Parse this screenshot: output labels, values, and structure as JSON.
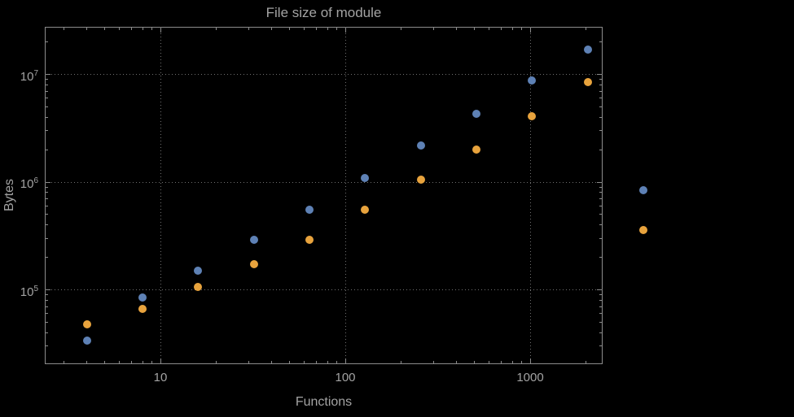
{
  "chart_data": {
    "type": "scatter",
    "title": "File size of module",
    "xlabel": "Functions",
    "ylabel": "Bytes",
    "x_scale": "log",
    "y_scale": "log",
    "x_range": [
      2.4,
      2470
    ],
    "y_range": [
      20500,
      27600000
    ],
    "grid": "dotted-major",
    "legend": "none",
    "x_ticks": [
      {
        "value": 10,
        "label": "10"
      },
      {
        "value": 100,
        "label": "100"
      },
      {
        "value": 1000,
        "label": "1000"
      }
    ],
    "y_ticks": [
      {
        "value": 100000,
        "label": "10^5"
      },
      {
        "value": 1000000,
        "label": "10^6"
      },
      {
        "value": 10000000,
        "label": "10^7"
      }
    ],
    "series": [
      {
        "name": "series-blue",
        "color": "#5e81b5",
        "points": [
          [
            4,
            34000
          ],
          [
            8,
            85000
          ],
          [
            16,
            150000
          ],
          [
            32,
            290000
          ],
          [
            64,
            550000
          ],
          [
            128,
            1100000
          ],
          [
            256,
            2200000
          ],
          [
            512,
            4300000
          ],
          [
            1024,
            8800000
          ],
          [
            2048,
            17000000
          ],
          [
            4096,
            840000
          ]
        ]
      },
      {
        "name": "series-orange",
        "color": "#e8a33d",
        "points": [
          [
            4,
            48000
          ],
          [
            8,
            67000
          ],
          [
            16,
            106000
          ],
          [
            32,
            173000
          ],
          [
            64,
            290000
          ],
          [
            128,
            550000
          ],
          [
            256,
            1050000
          ],
          [
            512,
            2000000
          ],
          [
            1024,
            4100000
          ],
          [
            2048,
            8500000
          ],
          [
            4096,
            360000
          ]
        ]
      }
    ],
    "colors": {
      "background": "#000000",
      "frame": "#8c8c8c",
      "grid": "#707070",
      "text": "#a3a3a3",
      "blue": "#5e81b5",
      "orange": "#e8a33d"
    }
  }
}
